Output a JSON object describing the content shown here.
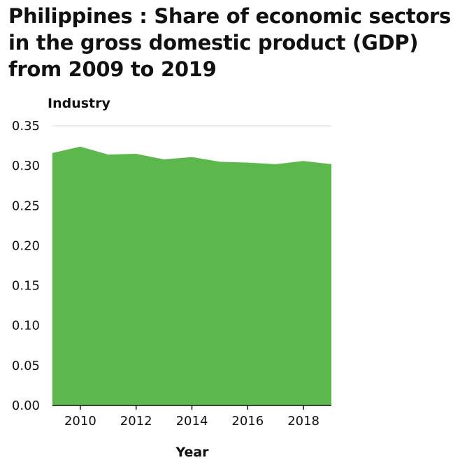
{
  "chart_data": {
    "type": "area",
    "title": "Philippines : Share of economic sectors in the gross domestic product (GDP) from 2009 to 2019",
    "xlabel": "Year",
    "ylabel": "Industry",
    "series": [
      {
        "x": [
          2009,
          2010,
          2011,
          2012,
          2013,
          2014,
          2015,
          2016,
          2017,
          2018,
          2019
        ],
        "values": [
          0.316,
          0.324,
          0.314,
          0.315,
          0.308,
          0.311,
          0.305,
          0.304,
          0.302,
          0.306,
          0.302
        ],
        "color": "#5cb84c"
      }
    ],
    "xlim": [
      2009,
      2019
    ],
    "ylim": [
      0,
      0.35
    ],
    "x_ticks": [
      2010,
      2012,
      2014,
      2016,
      2018
    ],
    "x_tick_labels": [
      "2010",
      "2012",
      "2014",
      "2016",
      "2018"
    ],
    "y_ticks": [
      0,
      0.05,
      0.1,
      0.15,
      0.2,
      0.25,
      0.3,
      0.35
    ],
    "y_tick_labels": [
      "0.00",
      "0.05",
      "0.10",
      "0.15",
      "0.20",
      "0.25",
      "0.30",
      "0.35"
    ],
    "grid": true,
    "legend": false
  }
}
